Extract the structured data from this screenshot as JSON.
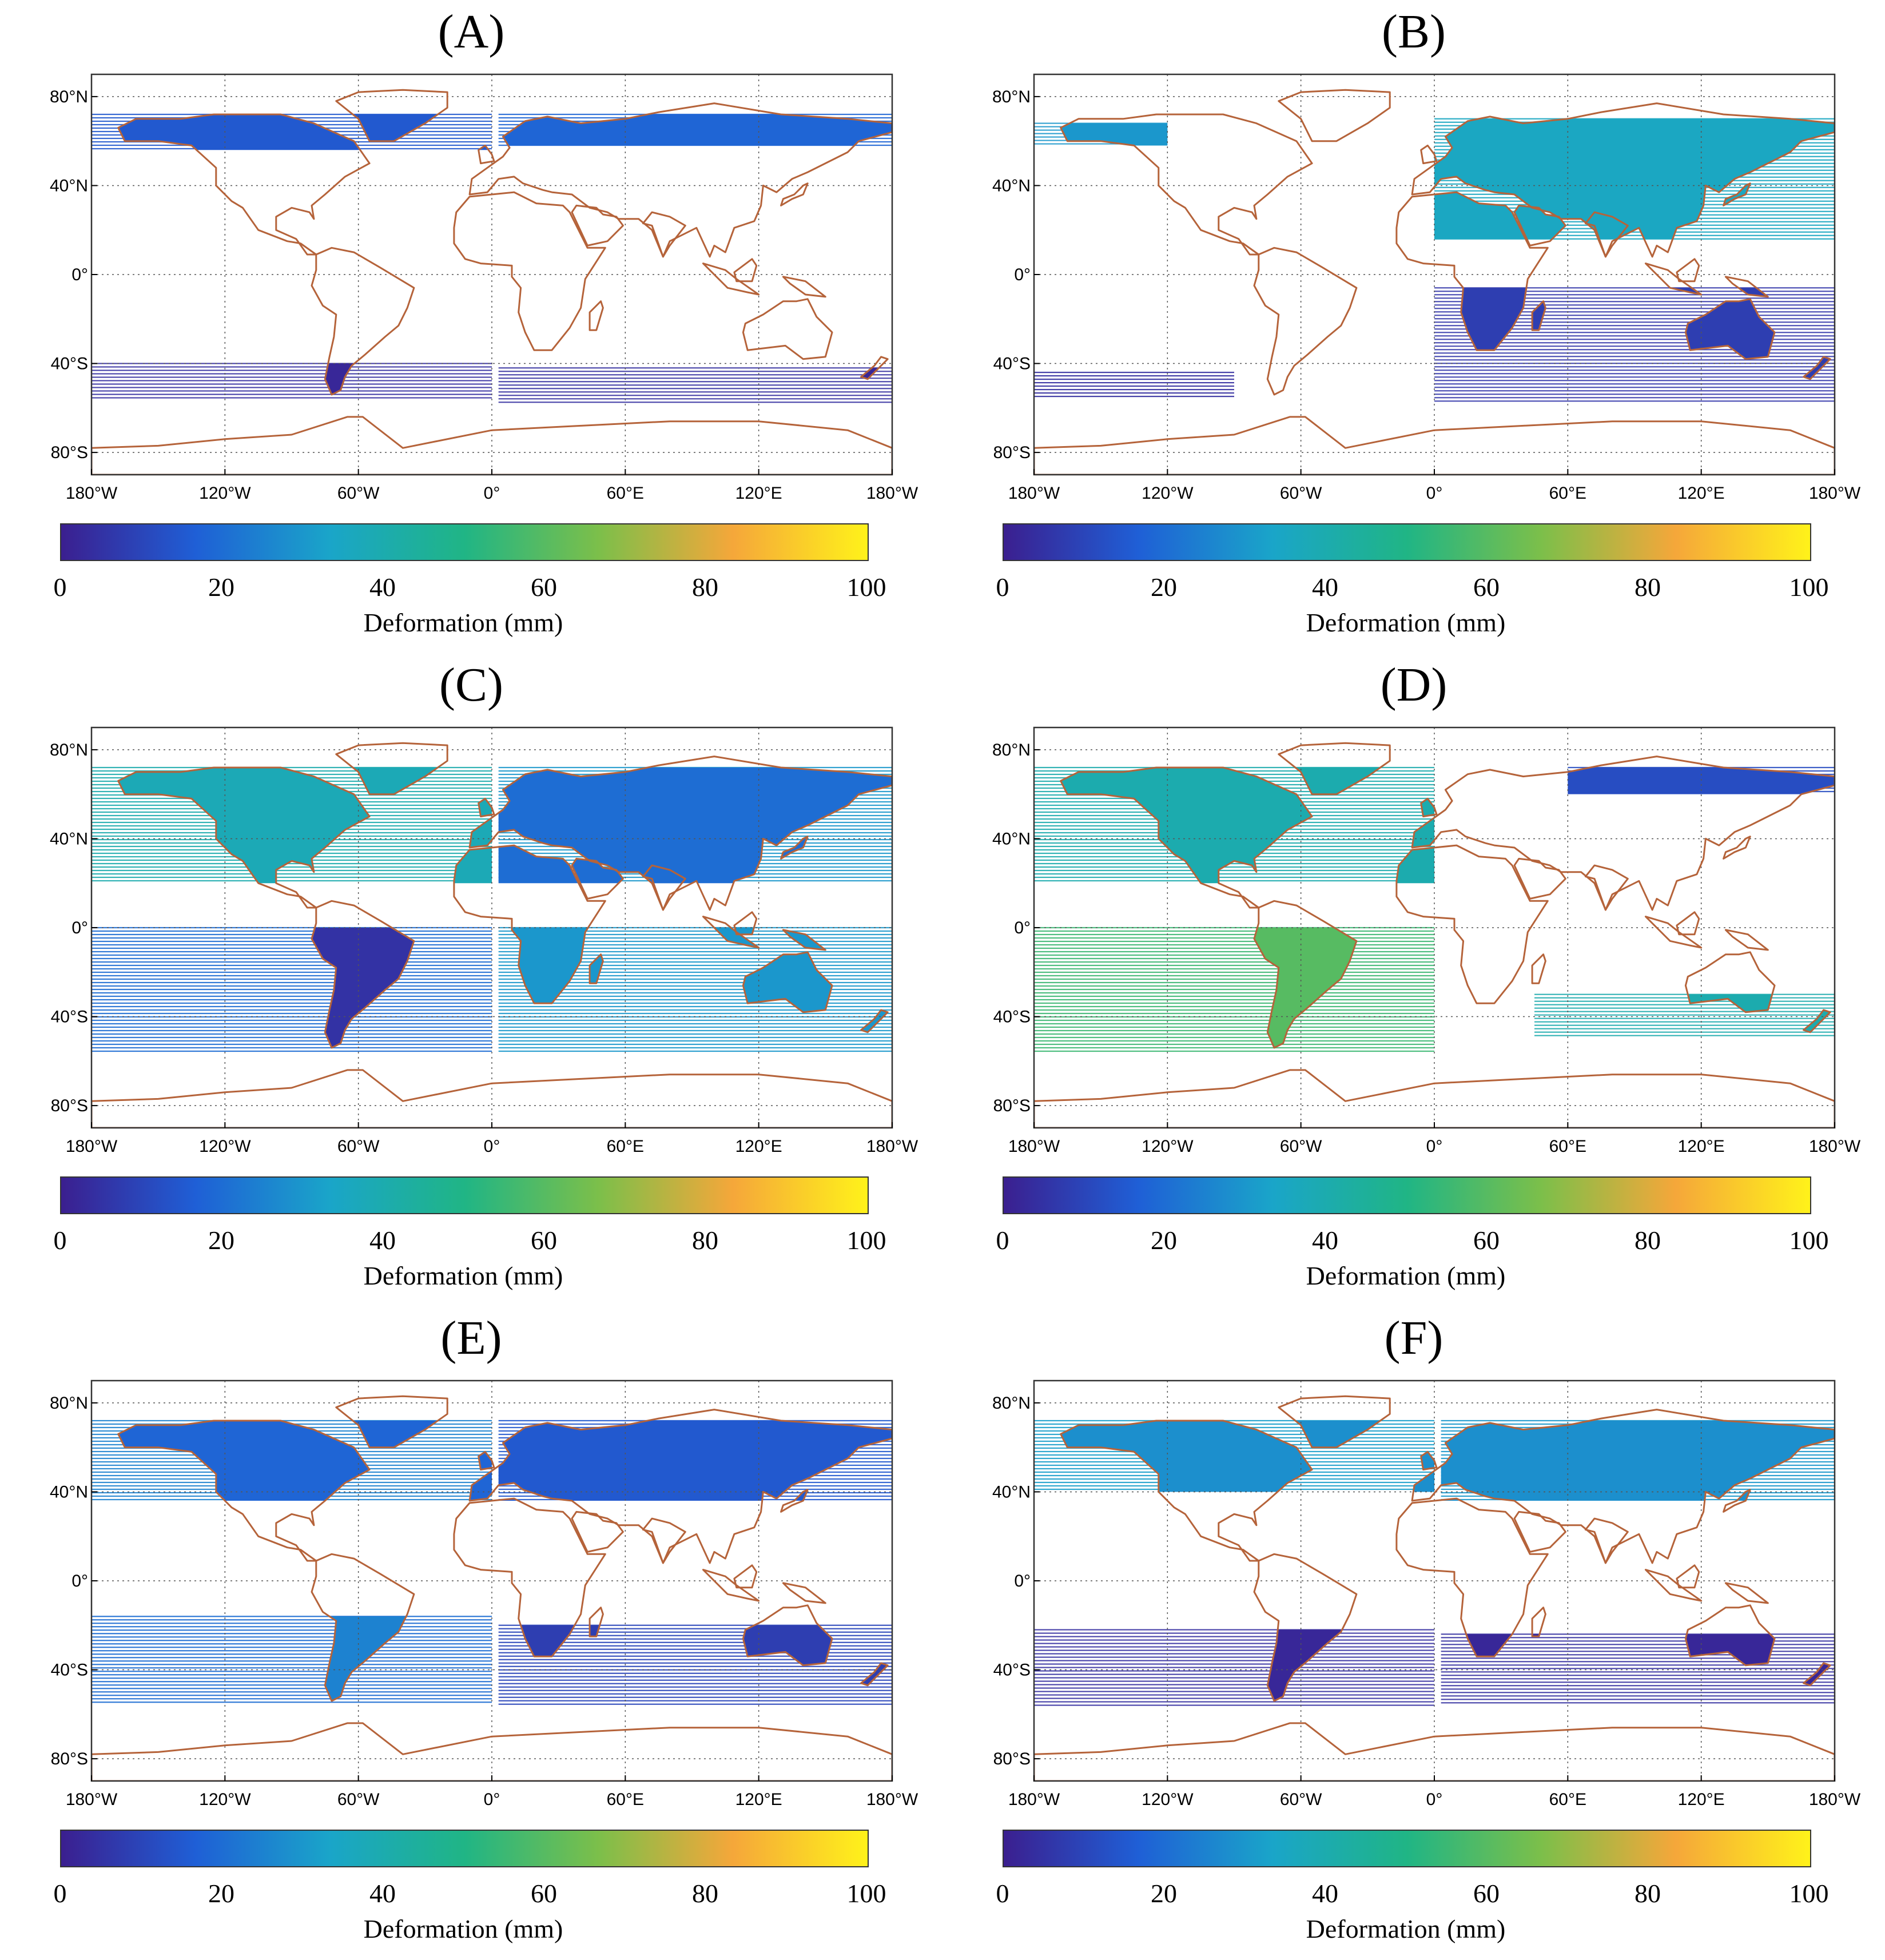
{
  "figure": {
    "panels": [
      {
        "id": "A",
        "title": "(A)",
        "bands": [
          {
            "lon": [
              -180,
              0
            ],
            "lat": [
              72,
              56
            ],
            "value": 15,
            "land_value": 15
          },
          {
            "lon": [
              3,
              180
            ],
            "lat": [
              72,
              58
            ],
            "value": 18,
            "land_value": 18
          },
          {
            "lon": [
              -180,
              0
            ],
            "lat": [
              -40,
              -56
            ],
            "value": 4,
            "land_value": 2
          },
          {
            "lon": [
              3,
              180
            ],
            "lat": [
              -42,
              -58
            ],
            "value": 4,
            "land_value": 2
          }
        ]
      },
      {
        "id": "B",
        "title": "(B)",
        "bands": [
          {
            "lon": [
              -180,
              -120
            ],
            "lat": [
              68,
              58
            ],
            "value": 30,
            "land_value": 30
          },
          {
            "lon": [
              0,
              180
            ],
            "lat": [
              70,
              16
            ],
            "value": 35,
            "land_value": 35
          },
          {
            "lon": [
              0,
              180
            ],
            "lat": [
              -6,
              -58
            ],
            "value": 6,
            "land_value": 8
          },
          {
            "lon": [
              -180,
              -90
            ],
            "lat": [
              -44,
              -56
            ],
            "value": 4,
            "land_value": 4
          }
        ]
      },
      {
        "id": "C",
        "title": "(C)",
        "bands": [
          {
            "lon": [
              -180,
              0
            ],
            "lat": [
              72,
              20
            ],
            "value": 40,
            "land_value": 38
          },
          {
            "lon": [
              3,
              180
            ],
            "lat": [
              72,
              20
            ],
            "value": 30,
            "land_value": 20
          },
          {
            "lon": [
              -180,
              0
            ],
            "lat": [
              0,
              -56
            ],
            "value": 20,
            "land_value": 5
          },
          {
            "lon": [
              3,
              180
            ],
            "lat": [
              0,
              -56
            ],
            "value": 30,
            "land_value": 30
          }
        ]
      },
      {
        "id": "D",
        "title": "(D)",
        "bands": [
          {
            "lon": [
              -180,
              0
            ],
            "lat": [
              72,
              20
            ],
            "value": 40,
            "land_value": 40
          },
          {
            "lon": [
              60,
              180
            ],
            "lat": [
              72,
              60
            ],
            "value": 12,
            "land_value": 12
          },
          {
            "lon": [
              -180,
              0
            ],
            "lat": [
              0,
              -56
            ],
            "value": 55,
            "land_value": 60
          },
          {
            "lon": [
              45,
              180
            ],
            "lat": [
              -30,
              -50
            ],
            "value": 40,
            "land_value": 40
          }
        ]
      },
      {
        "id": "E",
        "title": "(E)",
        "bands": [
          {
            "lon": [
              -180,
              0
            ],
            "lat": [
              72,
              36
            ],
            "value": 25,
            "land_value": 18
          },
          {
            "lon": [
              3,
              180
            ],
            "lat": [
              72,
              36
            ],
            "value": 15,
            "land_value": 15
          },
          {
            "lon": [
              -180,
              0
            ],
            "lat": [
              -16,
              -56
            ],
            "value": 20,
            "land_value": 25
          },
          {
            "lon": [
              3,
              180
            ],
            "lat": [
              -20,
              -56
            ],
            "value": 10,
            "land_value": 8
          }
        ]
      },
      {
        "id": "F",
        "title": "(F)",
        "bands": [
          {
            "lon": [
              -180,
              0
            ],
            "lat": [
              72,
              40
            ],
            "value": 32,
            "land_value": 28
          },
          {
            "lon": [
              3,
              180
            ],
            "lat": [
              72,
              36
            ],
            "value": 30,
            "land_value": 28
          },
          {
            "lon": [
              -180,
              0
            ],
            "lat": [
              -22,
              -56
            ],
            "value": 4,
            "land_value": 2
          },
          {
            "lon": [
              3,
              180
            ],
            "lat": [
              -24,
              -56
            ],
            "value": 4,
            "land_value": 2
          }
        ]
      }
    ],
    "lat_ticks": [
      {
        "value": 80,
        "label": "80°N"
      },
      {
        "value": 40,
        "label": "40°N"
      },
      {
        "value": 0,
        "label": "0°"
      },
      {
        "value": -40,
        "label": "40°S"
      },
      {
        "value": -80,
        "label": "80°S"
      }
    ],
    "lon_ticks": [
      {
        "value": -180,
        "label": "180°W"
      },
      {
        "value": -120,
        "label": "120°W"
      },
      {
        "value": -60,
        "label": "60°W"
      },
      {
        "value": 0,
        "label": "0°"
      },
      {
        "value": 60,
        "label": "60°E"
      },
      {
        "value": 120,
        "label": "120°E"
      },
      {
        "value": 180,
        "label": "180°W"
      }
    ],
    "colorbar": {
      "ticks": [
        "0",
        "20",
        "40",
        "60",
        "80",
        "100"
      ],
      "label": "Deformation (mm)",
      "range": [
        0,
        100
      ],
      "stops": [
        "#3b1f8f",
        "#1f5fd6",
        "#1aa5c9",
        "#20b585",
        "#7cbf4a",
        "#f5a73a",
        "#fff21a"
      ]
    },
    "colors": {
      "coast": "#b5633a",
      "grid": "#555555",
      "frame": "#333333"
    }
  }
}
